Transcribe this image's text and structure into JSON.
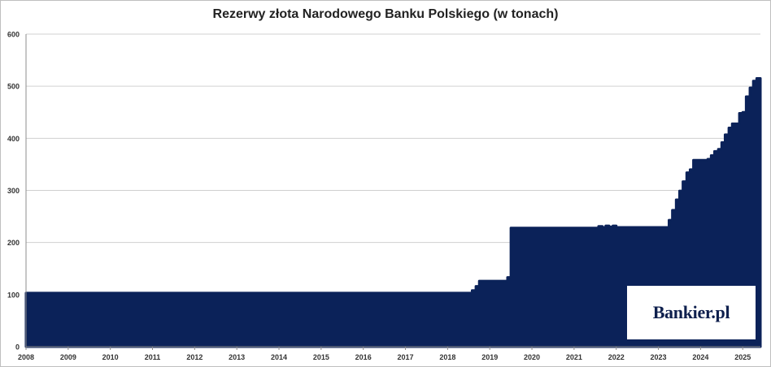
{
  "chart_data": {
    "type": "area",
    "title": "Rezerwy złota Narodowego Banku Polskiego (w tonach)",
    "xlabel": "",
    "ylabel": "",
    "ylim": [
      0,
      600
    ],
    "yticks": [
      0,
      100,
      200,
      300,
      400,
      500,
      600
    ],
    "xlim": [
      2008,
      2025.42
    ],
    "xticks": [
      "2008",
      "2009",
      "2010",
      "2011",
      "2012",
      "2013",
      "2014",
      "2015",
      "2016",
      "2017",
      "2018",
      "2019",
      "2020",
      "2021",
      "2022",
      "2023",
      "2024",
      "2025"
    ],
    "grid": true,
    "legend": "none",
    "color": "#0b2259",
    "x": [
      2008.0,
      2018.5,
      2018.58,
      2018.67,
      2018.75,
      2019.33,
      2019.42,
      2019.5,
      2021.5,
      2021.58,
      2021.67,
      2021.75,
      2021.83,
      2021.92,
      2022.0,
      2023.17,
      2023.25,
      2023.33,
      2023.42,
      2023.5,
      2023.58,
      2023.67,
      2023.75,
      2023.83,
      2024.0,
      2024.17,
      2024.25,
      2024.33,
      2024.42,
      2024.5,
      2024.58,
      2024.67,
      2024.75,
      2024.92,
      2025.0,
      2025.08,
      2025.17,
      2025.25,
      2025.33
    ],
    "y": [
      103,
      103,
      108,
      116,
      126,
      126,
      133,
      228,
      228,
      231,
      229,
      232,
      230,
      232,
      229,
      229,
      243,
      262,
      282,
      299,
      317,
      334,
      340,
      358,
      358,
      360,
      367,
      375,
      379,
      392,
      407,
      420,
      428,
      448,
      450,
      480,
      497,
      510,
      515
    ]
  },
  "logo": {
    "text": "Bankier.pl"
  }
}
